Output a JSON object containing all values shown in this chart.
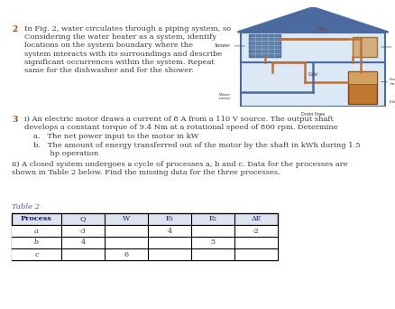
{
  "background_color": "#ffffff",
  "q2_number": "2",
  "q2_text_line1": "In Fig. 2, water circulates through a piping system, so",
  "q2_text_line2": "Considering the water heater as a system, identify",
  "q2_text_line3": "locations on the system boundary where the",
  "q2_text_line4": "system interacts with its surroundings and describe",
  "q2_text_line5": "significant occurrences within the system. Repeat",
  "q2_text_line6": "same for the dishwasher and for the shower.",
  "q3_number": "3",
  "q3_text_line1": "i) An electric motor draws a current of 8 A from a 110 V source. The output shaft",
  "q3_text_line2": "develops a constant torque of 9.4 Nm at a rotational speed of 800 rpm. Determine",
  "q3a_text": "a.   The net power input to the motor in kW",
  "q3b_text_line1": "b.   The amount of energy transferred out of the motor by the shaft in kWh during 1.5",
  "q3b_text_line2": "       hp operation",
  "q3_ii_text_line1": "ii) A closed system undergoes a cycle of processes a, b and c. Data for the processes are",
  "q3_ii_text_line2": "shown in Table 2 below. Find the missing data for the three processes.",
  "table_label": "Table 2",
  "table_headers": [
    "Process",
    "Q",
    "W",
    "E₁",
    "E₂",
    "ΔE"
  ],
  "table_data": [
    [
      "a",
      "-3",
      "",
      "4",
      "",
      "-2"
    ],
    [
      "b",
      "4",
      "",
      "",
      "5",
      ""
    ],
    [
      "c",
      "",
      "6",
      "",
      "",
      ""
    ]
  ],
  "text_color": "#3a3a3a",
  "number_color": "#c04000",
  "header_bold_color": "#1a1a6e",
  "table_header_color": "#1a1a6e",
  "italic_color": "#5555aa",
  "main_fontsize": 6.0,
  "small_fontsize": 5.8,
  "house_blue": "#4a6aa0",
  "house_blue_light": "#b8cfe8",
  "house_bg": "#dce8f5",
  "pipe_orange": "#c07030",
  "heater_orange": "#c07830",
  "heater_light": "#d4a060",
  "shower_blue_dark": "#3a5a8a",
  "grid_blue": "#7090b8"
}
